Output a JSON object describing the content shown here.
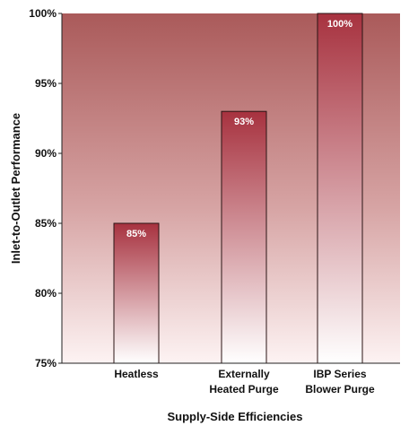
{
  "chart_data": {
    "type": "bar",
    "title": "",
    "xlabel": "Supply-Side Efficiencies",
    "ylabel": "Inlet-to-Outlet Performance",
    "categories": [
      [
        "Heatless"
      ],
      [
        "Externally",
        "Heated Purge"
      ],
      [
        "IBP Series",
        "Blower Purge"
      ]
    ],
    "values": [
      85,
      93,
      100
    ],
    "value_labels": [
      "85%",
      "93%",
      "100%"
    ],
    "ylim": [
      75,
      100
    ],
    "yticks": [
      75,
      80,
      85,
      90,
      95,
      100
    ],
    "ytick_labels": [
      "75%",
      "80%",
      "85%",
      "90%",
      "95%",
      "100%"
    ],
    "grid": false,
    "colors": {
      "plot_top": "#aa5a5a",
      "plot_bottom": "#fdf3f3",
      "bar_top": "#a7323f",
      "bar_bottom": "#ffffff",
      "bar_stroke": "#2a1414",
      "axis": "#222222"
    }
  }
}
